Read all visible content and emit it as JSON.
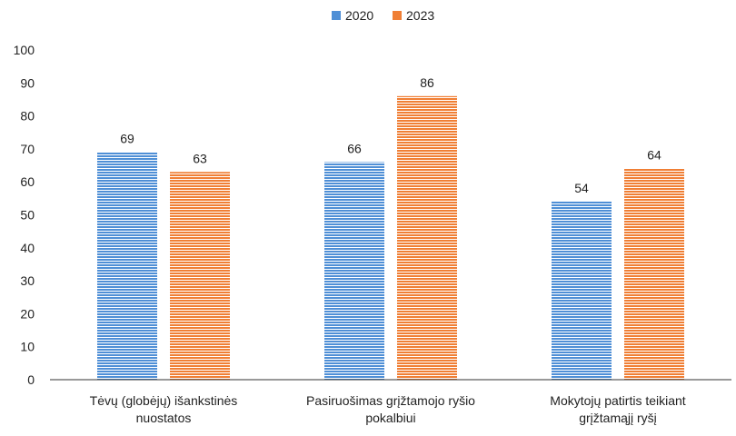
{
  "colors": {
    "series_2020": "#4F8FD6",
    "series_2023": "#F07F35",
    "axis": "#333333",
    "text": "#222222"
  },
  "chart_data": {
    "type": "bar",
    "categories": [
      [
        "Tėvų (globėjų) išankstinės",
        "nuostatos"
      ],
      [
        "Pasiruošimas grįžtamojo ryšio",
        "pokalbiui"
      ],
      [
        "Mokytojų patirtis teikiant",
        "grįžtamąjį ryšį"
      ]
    ],
    "series": [
      {
        "name": "2020",
        "values": [
          69,
          66,
          54
        ]
      },
      {
        "name": "2023",
        "values": [
          63,
          86,
          64
        ]
      }
    ],
    "ylim": [
      0,
      100
    ],
    "yticks": [
      0,
      10,
      20,
      30,
      40,
      50,
      60,
      70,
      80,
      90,
      100
    ],
    "legend_position": "top-center",
    "grid": false,
    "bar_fill": "horizontal-striped"
  }
}
